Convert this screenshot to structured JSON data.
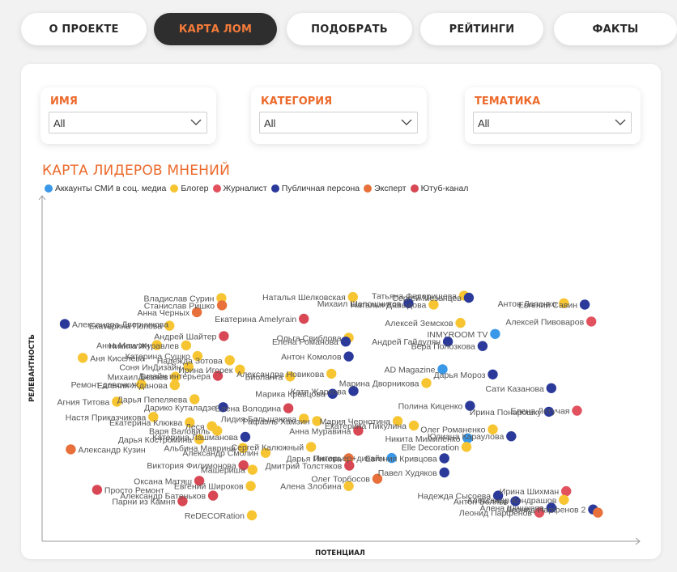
{
  "nav": {
    "items": [
      {
        "label": "О ПРОЕКТЕ"
      },
      {
        "label": "КАРТА ЛОМ"
      },
      {
        "label": "ПОДОБРАТЬ"
      },
      {
        "label": "РЕЙТИНГИ"
      },
      {
        "label": "ФАКТЫ"
      }
    ],
    "active_index": 1,
    "active_bg": "#2e2e2e",
    "accent": "#ec6a2c"
  },
  "filters": [
    {
      "label": "ИМЯ",
      "value": "All"
    },
    {
      "label": "КАТЕГОРИЯ",
      "value": "All"
    },
    {
      "label": "ТЕМАТИКА",
      "value": "All"
    }
  ],
  "icons": {
    "dropdown": "chevron-down-icon"
  },
  "chart_data": {
    "type": "scatter",
    "title": "КАРТА ЛИДЕРОВ МНЕНИЙ",
    "xlabel": "ПОТЕНЦИАЛ",
    "ylabel": "РЕЛЕВАНТНОСТЬ",
    "legend_position": "top-left",
    "grid": false,
    "categories": [
      {
        "key": "smi",
        "name": "Аккаунты СМИ в соц. медиа",
        "color": "#3a98e8"
      },
      {
        "key": "blogger",
        "name": "Блогер",
        "color": "#f7c531"
      },
      {
        "key": "journalist",
        "name": "Журналист",
        "color": "#e2525e"
      },
      {
        "key": "public",
        "name": "Публичная персона",
        "color": "#2b3a9a"
      },
      {
        "key": "expert",
        "name": "Эксперт",
        "color": "#e8703a"
      },
      {
        "key": "youtube",
        "name": "Ютуб-канал",
        "color": "#d84854"
      }
    ],
    "points": [
      {
        "name": "Владислав Сурин",
        "cat": "blogger",
        "x": 30.0,
        "y": 70.4
      },
      {
        "name": "Станислав Ришко",
        "cat": "expert",
        "x": 30.1,
        "y": 68.3
      },
      {
        "name": "Анна Черных",
        "cat": "expert",
        "x": 25.9,
        "y": 66.3
      },
      {
        "name": "Екатерина Попова",
        "cat": "blogger",
        "x": 21.3,
        "y": 62.4
      },
      {
        "name": "Андрей Шайтер",
        "cat": "youtube",
        "x": 30.4,
        "y": 59.4
      },
      {
        "name": "Александра Дворникова",
        "cat": "public",
        "x": 3.8,
        "y": 62.9
      },
      {
        "name": "Анна Маилян",
        "cat": "blogger",
        "x": 19.2,
        "y": 56.8
      },
      {
        "name": "Никита Журавлев",
        "cat": "blogger",
        "x": 24.1,
        "y": 56.7
      },
      {
        "name": "Катерина Сушко",
        "cat": "blogger",
        "x": 26.0,
        "y": 53.6
      },
      {
        "name": "Аня Киселева",
        "cat": "blogger",
        "x": 6.8,
        "y": 53.1
      },
      {
        "name": "Надежда Зотова",
        "cat": "blogger",
        "x": 31.4,
        "y": 52.4
      },
      {
        "name": "Соня ИнДизайн",
        "cat": "blogger",
        "x": 24.5,
        "y": 50.5
      },
      {
        "name": "Ирина Игорек",
        "cat": "blogger",
        "x": 33.1,
        "y": 49.7
      },
      {
        "name": "Михаил Безяев",
        "cat": "blogger",
        "x": 22.3,
        "y": 47.6
      },
      {
        "name": "Дизайн интерьера",
        "cat": "youtube",
        "x": 29.4,
        "y": 47.9
      },
      {
        "name": "Ремонт девочки",
        "cat": "blogger",
        "x": 16.6,
        "y": 45.4
      },
      {
        "name": "Евгения Жданова",
        "cat": "blogger",
        "x": 22.2,
        "y": 45.2
      },
      {
        "name": "Дарья Пепеляева",
        "cat": "blogger",
        "x": 25.5,
        "y": 41.1
      },
      {
        "name": "Агния Титова",
        "cat": "blogger",
        "x": 12.5,
        "y": 40.4
      },
      {
        "name": "Дарико Куталадзе",
        "cat": "public",
        "x": 30.3,
        "y": 38.8
      },
      {
        "name": "Настя Приказчикова",
        "cat": "blogger",
        "x": 18.6,
        "y": 36.0
      },
      {
        "name": "Екатерина Клюква",
        "cat": "blogger",
        "x": 24.7,
        "y": 34.4
      },
      {
        "name": "Леся",
        "cat": "blogger",
        "x": 28.4,
        "y": 33.3
      },
      {
        "name": "Варя Валовиль",
        "cat": "blogger",
        "x": 29.3,
        "y": 32.0
      },
      {
        "name": "Катерина Лашманова",
        "cat": "public",
        "x": 34.0,
        "y": 30.2
      },
      {
        "name": "Дарья Костромина",
        "cat": "blogger",
        "x": 26.3,
        "y": 29.5
      },
      {
        "name": "Альбина Маврина",
        "cat": "blogger",
        "x": 33.6,
        "y": 27.0
      },
      {
        "name": "Александр Кузин",
        "cat": "expert",
        "x": 4.8,
        "y": 26.6
      },
      {
        "name": "Александр Смолин",
        "cat": "blogger",
        "x": 37.4,
        "y": 25.6
      },
      {
        "name": "Виктория Филимонова",
        "cat": "youtube",
        "x": 33.7,
        "y": 22.0
      },
      {
        "name": "Машериша",
        "cat": "blogger",
        "x": 35.2,
        "y": 20.7
      },
      {
        "name": "Оксана Матяш",
        "cat": "youtube",
        "x": 26.3,
        "y": 17.5
      },
      {
        "name": "Евгений Широков",
        "cat": "blogger",
        "x": 34.9,
        "y": 16.0
      },
      {
        "name": "Просто Ремонт",
        "cat": "youtube",
        "x": 9.2,
        "y": 14.9
      },
      {
        "name": "Парни из Камня",
        "cat": "youtube",
        "x": 23.5,
        "y": 11.6
      },
      {
        "name": "Александр Батеньков",
        "cat": "youtube",
        "x": 28.6,
        "y": 13.2
      },
      {
        "name": "ReDECORation",
        "cat": "blogger",
        "x": 35.1,
        "y": 7.5
      },
      {
        "name": "Наталья Шелковская",
        "cat": "blogger",
        "x": 52.0,
        "y": 70.7
      },
      {
        "name": "Екатерина Amelyrain",
        "cat": "youtube",
        "x": 43.8,
        "y": 64.4
      },
      {
        "name": "Ольга Свиблова",
        "cat": "blogger",
        "x": 51.3,
        "y": 58.9
      },
      {
        "name": "Елена Романова",
        "cat": "public",
        "x": 50.8,
        "y": 57.8
      },
      {
        "name": "Антон Комолов",
        "cat": "public",
        "x": 51.3,
        "y": 53.5
      },
      {
        "name": "Александра Новикова",
        "cat": "blogger",
        "x": 48.4,
        "y": 48.5
      },
      {
        "name": "Биоланта",
        "cat": "blogger",
        "x": 41.5,
        "y": 47.7
      },
      {
        "name": "Катя Жаркова",
        "cat": "public",
        "x": 52.1,
        "y": 43.5
      },
      {
        "name": "Марика Кравцова",
        "cat": "public",
        "x": 48.6,
        "y": 42.7
      },
      {
        "name": "Елена Володина",
        "cat": "youtube",
        "x": 41.2,
        "y": 38.5
      },
      {
        "name": "Лидия Большакова",
        "cat": "blogger",
        "x": 43.8,
        "y": 35.5
      },
      {
        "name": "Рафаэль Хамзин",
        "cat": "blogger",
        "x": 46.0,
        "y": 34.8
      },
      {
        "name": "Анна Муравина",
        "cat": "youtube",
        "x": 52.9,
        "y": 32.0
      },
      {
        "name": "Сергей Калюжный",
        "cat": "blogger",
        "x": 45.0,
        "y": 27.3
      },
      {
        "name": "Дарья Пикова",
        "cat": "expert",
        "x": 51.3,
        "y": 24.0
      },
      {
        "name": "Интерьер+дизайн",
        "cat": "smi",
        "x": 58.5,
        "y": 24.1
      },
      {
        "name": "Дмитрий Толстяков",
        "cat": "youtube",
        "x": 51.4,
        "y": 21.9
      },
      {
        "name": "Олег Торбосов",
        "cat": "expert",
        "x": 56.1,
        "y": 18.1
      },
      {
        "name": "Алена Злобина",
        "cat": "blogger",
        "x": 51.3,
        "y": 16.0
      },
      {
        "name": "Михаил Шапошников",
        "cat": "public",
        "x": 61.3,
        "y": 68.9
      },
      {
        "name": "Наталья Давыдова",
        "cat": "blogger",
        "x": 65.5,
        "y": 68.5
      },
      {
        "name": "Татьяна Федорищева",
        "cat": "blogger",
        "x": 70.6,
        "y": 71.1
      },
      {
        "name": "Сергей Мезенцев",
        "cat": "public",
        "x": 71.4,
        "y": 70.5
      },
      {
        "name": "Алексей Земсков",
        "cat": "blogger",
        "x": 70.0,
        "y": 63.2
      },
      {
        "name": "INMYROOM TV",
        "cat": "smi",
        "x": 75.8,
        "y": 60.0
      },
      {
        "name": "Андрей Гайдулян",
        "cat": "public",
        "x": 67.9,
        "y": 57.8
      },
      {
        "name": "Вера Полозкова",
        "cat": "public",
        "x": 73.7,
        "y": 56.5
      },
      {
        "name": "AD Magazine",
        "cat": "smi",
        "x": 67.0,
        "y": 49.8
      },
      {
        "name": "Дарья Мороз",
        "cat": "public",
        "x": 75.4,
        "y": 48.3
      },
      {
        "name": "Марина Дворникова",
        "cat": "blogger",
        "x": 64.3,
        "y": 45.8
      },
      {
        "name": "Полина Киценко",
        "cat": "public",
        "x": 71.6,
        "y": 39.2
      },
      {
        "name": "Мария Чернотина",
        "cat": "blogger",
        "x": 59.5,
        "y": 34.8
      },
      {
        "name": "Екатерина Пикулина",
        "cat": "blogger",
        "x": 62.2,
        "y": 33.5
      },
      {
        "name": "Никита Мимипенко",
        "cat": "smi",
        "x": 71.2,
        "y": 29.8
      },
      {
        "name": "Олег Романенко",
        "cat": "blogger",
        "x": 75.4,
        "y": 32.4
      },
      {
        "name": "Elle Decoration",
        "cat": "blogger",
        "x": 71.0,
        "y": 27.3
      },
      {
        "name": "Юлиана Караулова",
        "cat": "public",
        "x": 78.5,
        "y": 30.4
      },
      {
        "name": "Евгения Кривцова",
        "cat": "public",
        "x": 67.3,
        "y": 24.0
      },
      {
        "name": "Павел Худяков",
        "cat": "public",
        "x": 67.3,
        "y": 19.9
      },
      {
        "name": "Антон Лапенко",
        "cat": "blogger",
        "x": 87.3,
        "y": 68.9
      },
      {
        "name": "Евгений Савин",
        "cat": "public",
        "x": 90.8,
        "y": 68.5
      },
      {
        "name": "Алексей Пивоваров",
        "cat": "journalist",
        "x": 91.9,
        "y": 63.6
      },
      {
        "name": "Сати Казанова",
        "cat": "public",
        "x": 85.2,
        "y": 44.3
      },
      {
        "name": "Ирина Понарошку",
        "cat": "public",
        "x": 84.8,
        "y": 37.5
      },
      {
        "name": "Елена Летучая",
        "cat": "journalist",
        "x": 89.5,
        "y": 37.8
      },
      {
        "name": "Надежда Сысоева",
        "cat": "public",
        "x": 76.3,
        "y": 13.2
      },
      {
        "name": "Антон Беляев",
        "cat": "public",
        "x": 79.2,
        "y": 11.6
      },
      {
        "name": "Ирина Шихман",
        "cat": "journalist",
        "x": 87.7,
        "y": 14.5
      },
      {
        "name": "Александр Кондрашов",
        "cat": "blogger",
        "x": 87.3,
        "y": 12.0
      },
      {
        "name": "Алена Шишкова",
        "cat": "public",
        "x": 85.2,
        "y": 9.7
      },
      {
        "name": "Леонид Парфенов",
        "cat": "journalist",
        "x": 83.2,
        "y": 8.3
      },
      {
        "name": "Леонид Парфенов 2",
        "cat": "public",
        "x": 92.2,
        "y": 9.2
      },
      {
        "name": "",
        "cat": "expert",
        "x": 93.0,
        "y": 8.3
      }
    ]
  }
}
